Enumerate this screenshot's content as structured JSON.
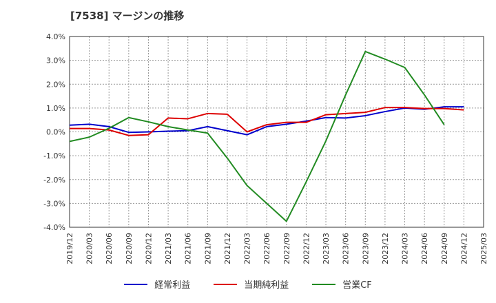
{
  "title": "[7538]  マージンの推移",
  "colors": {
    "keijo": "#0000cc",
    "junri": "#dd0000",
    "eigyocf": "#228b22"
  },
  "chart_data": {
    "type": "line",
    "title": "[7538]  マージンの推移",
    "xlabel": "",
    "ylabel": "",
    "ylim": [
      -4.0,
      4.0
    ],
    "yticks": [
      4.0,
      3.0,
      2.0,
      1.0,
      0.0,
      -1.0,
      -2.0,
      -3.0,
      -4.0
    ],
    "ytick_labels": [
      "4.0%",
      "3.0%",
      "2.0%",
      "1.0%",
      "0.0%",
      "-1.0%",
      "-2.0%",
      "-3.0%",
      "-4.0%"
    ],
    "categories": [
      "2019/12",
      "2020/03",
      "2020/06",
      "2020/09",
      "2020/12",
      "2021/03",
      "2021/06",
      "2021/09",
      "2021/12",
      "2022/03",
      "2022/06",
      "2022/09",
      "2022/12",
      "2023/03",
      "2023/06",
      "2023/09",
      "2023/12",
      "2024/03",
      "2024/06",
      "2024/09",
      "2024/12",
      "2025/03"
    ],
    "grid": true,
    "legend_position": "bottom",
    "series": [
      {
        "name": "経常利益",
        "color": "#0000cc",
        "values": [
          0.28,
          0.32,
          0.22,
          -0.02,
          0.0,
          0.03,
          0.05,
          0.22,
          0.05,
          -0.12,
          0.22,
          0.32,
          0.45,
          0.6,
          0.58,
          0.68,
          0.85,
          1.0,
          0.95,
          1.05,
          1.05,
          null
        ]
      },
      {
        "name": "当期純利益",
        "color": "#dd0000",
        "values": [
          0.14,
          0.14,
          0.08,
          -0.15,
          -0.12,
          0.58,
          0.55,
          0.77,
          0.74,
          0.0,
          0.3,
          0.4,
          0.4,
          0.72,
          0.77,
          0.82,
          1.02,
          1.02,
          0.98,
          0.98,
          0.92,
          null
        ]
      },
      {
        "name": "営業CF",
        "color": "#228b22",
        "values": [
          -0.4,
          -0.22,
          0.15,
          0.6,
          0.42,
          0.22,
          0.08,
          -0.05,
          -1.1,
          -2.25,
          -3.0,
          -3.75,
          -2.1,
          -0.38,
          1.55,
          3.37,
          3.05,
          2.7,
          1.55,
          0.3,
          null,
          null
        ]
      }
    ]
  }
}
